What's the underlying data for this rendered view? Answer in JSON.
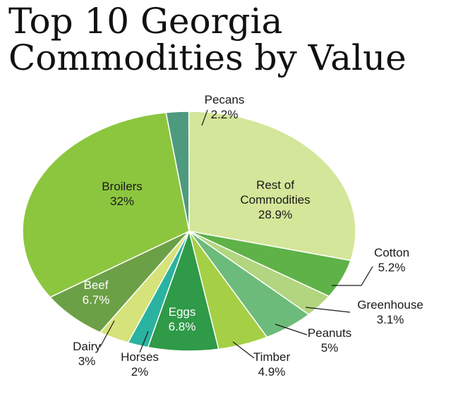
{
  "chart_data": {
    "type": "pie",
    "title": "Top 10 Georgia Commodities by Value",
    "unit": "%",
    "slices": [
      {
        "label": "Pecans",
        "value": 2.2,
        "display": "2.2%",
        "color": "#4e9a7e"
      },
      {
        "label": "Rest of Commodities",
        "value": 28.9,
        "display": "28.9%",
        "color": "#d4e699"
      },
      {
        "label": "Cotton",
        "value": 5.2,
        "display": "5.2%",
        "color": "#5eb247"
      },
      {
        "label": "Greenhouse",
        "value": 3.1,
        "display": "3.1%",
        "color": "#b2d67f"
      },
      {
        "label": "Peanuts",
        "value": 5,
        "display": "5%",
        "color": "#6dbb7a"
      },
      {
        "label": "Timber",
        "value": 4.9,
        "display": "4.9%",
        "color": "#a5cf45"
      },
      {
        "label": "Eggs",
        "value": 6.8,
        "display": "6.8%",
        "color": "#2f9a47"
      },
      {
        "label": "Horses",
        "value": 2,
        "display": "2%",
        "color": "#2ab3a0"
      },
      {
        "label": "Dairy",
        "value": 3,
        "display": "3%",
        "color": "#d6e27a"
      },
      {
        "label": "Beef",
        "value": 6.7,
        "display": "6.7%",
        "color": "#6ca046"
      },
      {
        "label": "Broilers",
        "value": 32,
        "display": "32%",
        "color": "#8cc63f"
      }
    ]
  }
}
